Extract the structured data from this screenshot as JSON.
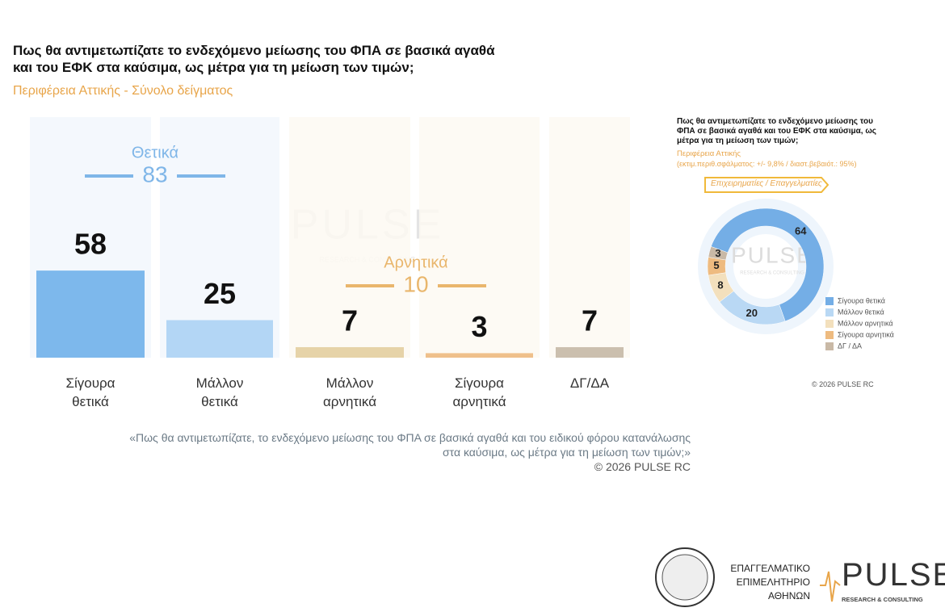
{
  "chart_data": [
    {
      "type": "bar",
      "title": "Πως θα αντιμετωπίζατε το ενδεχόμενο μείωσης του ΦΠΑ σε βασικά αγαθά και του ΕΦΚ στα καύσιμα, ως μέτρα για τη μείωση των τιμών;",
      "subtitle": "Περιφέρεια Αττικής - Σύνολο δείγματος",
      "categories": [
        "Σίγουρα θετικά",
        "Μάλλον θετικά",
        "Μάλλον αρνητικά",
        "Σίγουρα αρνητικά",
        "ΔΓ/ΔΑ"
      ],
      "values": [
        58,
        25,
        7,
        3,
        7
      ],
      "colors": [
        "#7db8ec",
        "#b3d6f5",
        "#e6d3a8",
        "#efc08b",
        "#cbbfae"
      ],
      "groups": [
        {
          "label": "Θετικά",
          "value": 83,
          "color": "#7fb6e8"
        },
        {
          "label": "Αρνητικά",
          "value": 10,
          "color": "#e9b66c"
        }
      ],
      "watermark": "PULSE",
      "watermark_sub": "RESEARCH & CONSULTING"
    },
    {
      "type": "donut",
      "title": "Πως θα αντιμετωπίζατε το ενδεχόμενο μείωσης του ΦΠΑ σε βασικά αγαθά και του ΕΦΚ στα καύσιμα, ως μέτρα για τη μείωση των τιμών;",
      "subtitle": "Περιφέρεια Αττικής",
      "note": "(εκτιμ.περιθ.σφάλματος: +/- 9,8% / διαστ.βεβαιότ.: 95%)",
      "segment": "Επιχειρηματίες / Επαγγελματίες",
      "categories": [
        "Σίγουρα θετικά",
        "Μάλλον θετικά",
        "Μάλλον αρνητικά",
        "Σίγουρα αρνητικά",
        "ΔΓ / ΔΑ"
      ],
      "values": [
        64,
        20,
        8,
        5,
        3
      ],
      "colors": [
        "#74aee6",
        "#b9d8f4",
        "#f3e0bd",
        "#eebb80",
        "#c9b9a6"
      ],
      "watermark": "PULSE",
      "watermark_sub": "RESEARCH & CONSULTING",
      "copyright": "© 2026 PULSE RC"
    }
  ],
  "footer": {
    "question": "«Πως θα αντιμετωπίζατε, το ενδεχόμενο μείωσης του ΦΠΑ σε βασικά αγαθά και του ειδικού φόρου κατανάλωσης στα καύσιμα, ως μέτρα για τη μείωση των τιμών;»",
    "copyright": "©  2026  PULSE RC"
  },
  "logos": {
    "chamber": [
      "ΕΠΑΓΓΕΛΜΑΤΙΚΟ",
      "ΕΠΙΜΕΛΗΤΗΡΙΟ",
      "ΑΘΗΝΩΝ"
    ],
    "pulse": "PULSE",
    "pulse_sub": "RESEARCH & CONSULTING"
  }
}
